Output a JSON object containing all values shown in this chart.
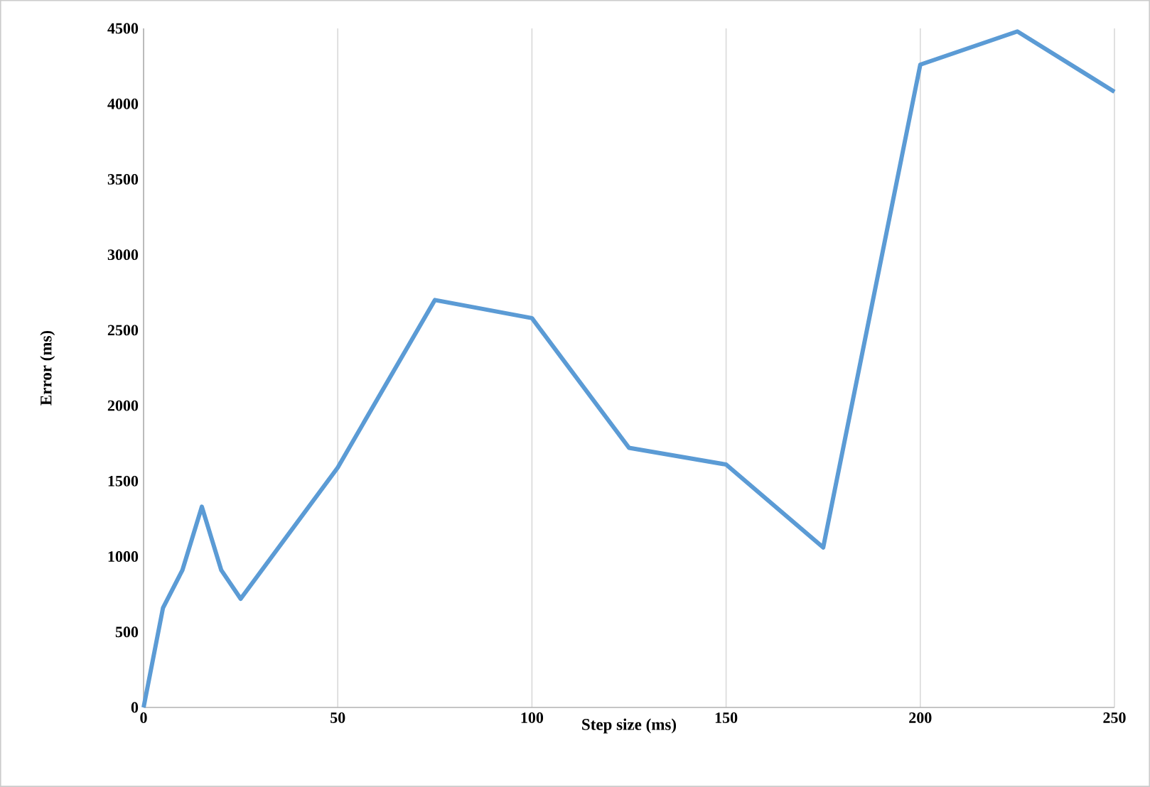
{
  "chart_data": {
    "type": "line",
    "xlabel": "Step size (ms)",
    "ylabel": "Error (ms)",
    "x": [
      0,
      5,
      10,
      15,
      20,
      25,
      50,
      75,
      100,
      125,
      150,
      175,
      200,
      225,
      250
    ],
    "series": [
      {
        "color": "#5b9bd5",
        "values": [
          0,
          660,
          910,
          1330,
          910,
          720,
          1590,
          2700,
          2580,
          1720,
          1610,
          1060,
          4260,
          4480,
          4080
        ]
      }
    ],
    "xlim": [
      0,
      250
    ],
    "xticks": [
      0,
      50,
      100,
      150,
      200,
      250
    ],
    "ylim": [
      0,
      4500
    ],
    "yticks": [
      0,
      500,
      1000,
      1500,
      2000,
      2500,
      3000,
      3500,
      4000,
      4500
    ],
    "grid": "x",
    "marker": "none",
    "line_style": "solid"
  }
}
